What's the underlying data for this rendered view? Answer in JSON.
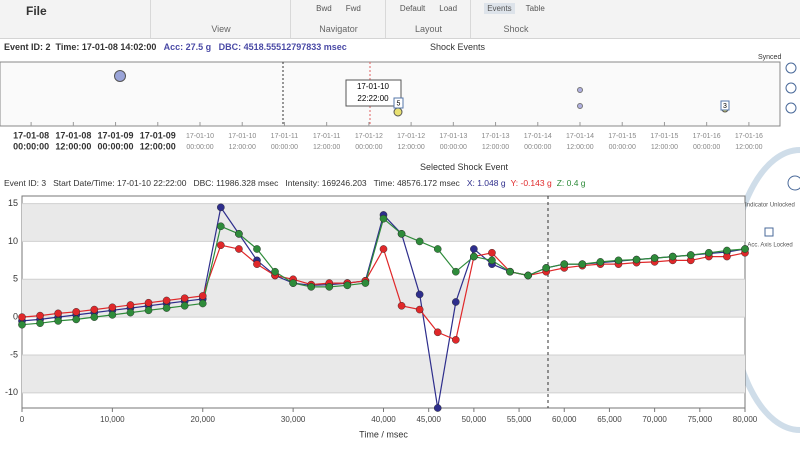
{
  "toolbar": {
    "file": "File",
    "groups": [
      {
        "name": "View",
        "buttons": []
      },
      {
        "name": "Navigator",
        "buttons": [
          "Bwd",
          "Fwd"
        ]
      },
      {
        "name": "Layout",
        "buttons": [
          "Default",
          "Load"
        ]
      },
      {
        "name": "Shock",
        "buttons": [
          "Events",
          "Table"
        ]
      }
    ]
  },
  "shock_events": {
    "title": "Shock Events",
    "synced": "Synced",
    "info": {
      "event_id": "Event ID: 2",
      "time": "Time: 17-01-08 14:02:00",
      "acc": "Acc: 27.5 g",
      "dbc": "DBC: 4518.55512797833 msec"
    },
    "tooltip": {
      "date": "17-01-10",
      "time": "22:22:00",
      "count": "5"
    },
    "marker_count": "3",
    "timeline_labels": [
      {
        "date": "17-01-08",
        "time": "00:00:00"
      },
      {
        "date": "17-01-08",
        "time": "12:00:00"
      },
      {
        "date": "17-01-09",
        "time": "00:00:00"
      },
      {
        "date": "17-01-09",
        "time": "12:00:00"
      },
      {
        "date": "17-01-10",
        "time": "00:00:00"
      },
      {
        "date": "17-01-10",
        "time": "12:00:00"
      },
      {
        "date": "17-01-11",
        "time": "00:00:00"
      },
      {
        "date": "17-01-11",
        "time": "12:00:00"
      },
      {
        "date": "17-01-12",
        "time": "00:00:00"
      },
      {
        "date": "17-01-12",
        "time": "12:00:00"
      },
      {
        "date": "17-01-13",
        "time": "00:00:00"
      },
      {
        "date": "17-01-13",
        "time": "12:00:00"
      },
      {
        "date": "17-01-14",
        "time": "00:00:00"
      },
      {
        "date": "17-01-14",
        "time": "12:00:00"
      },
      {
        "date": "17-01-15",
        "time": "00:00:00"
      },
      {
        "date": "17-01-15",
        "time": "12:00:00"
      },
      {
        "date": "17-01-16",
        "time": "00:00:00"
      },
      {
        "date": "17-01-16",
        "time": "12:00:00"
      }
    ]
  },
  "selected_event": {
    "title": "Selected Shock Event",
    "info": [
      "Event ID: 3",
      "Start Date/Time: 17-01-10 22:22:00",
      "DBC: 11986.328 msec",
      "Intensity: 169246.203",
      "Time: 48576.172 msec"
    ],
    "axes_info": [
      {
        "text": "X: 1.048 g",
        "color": "#2e2e8c"
      },
      {
        "text": "Y: -0.143 g",
        "color": "#e0282a"
      },
      {
        "text": "Z: 0.4 g",
        "color": "#2e8b3a"
      }
    ],
    "side_buttons": [
      "Indicator Unlocked",
      "Acc. Axis Locked"
    ]
  },
  "chart_data": {
    "type": "line",
    "x_label": "Time / msec",
    "x": [
      0,
      2000,
      4000,
      6000,
      8000,
      10000,
      12000,
      14000,
      16000,
      18000,
      20000,
      22000,
      24000,
      26000,
      28000,
      30000,
      32000,
      34000,
      36000,
      38000,
      40000,
      42000,
      44000,
      46000,
      48000,
      50000,
      52000,
      54000,
      56000,
      58000,
      60000,
      62000,
      64000,
      66000,
      68000,
      70000,
      72000,
      74000,
      76000,
      78000,
      80000
    ],
    "series": [
      {
        "color": "#2e2e8c",
        "values": [
          -0.5,
          -0.3,
          0,
          0.3,
          0.6,
          0.9,
          1.2,
          1.5,
          1.8,
          2.1,
          2.4,
          14.5,
          11,
          7.5,
          5.5,
          4.5,
          4.2,
          4.3,
          4.5,
          4.8,
          13.5,
          11,
          3,
          -12,
          2,
          9,
          7,
          6,
          5.5,
          6.5,
          7,
          7,
          7.2,
          7.4,
          7.6,
          7.8,
          8,
          8.2,
          8.4,
          8.6,
          9
        ]
      },
      {
        "color": "#e0282a",
        "values": [
          0,
          0.2,
          0.5,
          0.7,
          1,
          1.3,
          1.6,
          1.9,
          2.2,
          2.5,
          2.8,
          9.5,
          9,
          7,
          5.5,
          5,
          4.3,
          4.5,
          4.5,
          4.8,
          9,
          1.5,
          1,
          -2,
          -3,
          8,
          8.5,
          6,
          5.5,
          6,
          6.5,
          6.8,
          7,
          7,
          7.2,
          7.3,
          7.5,
          7.5,
          8,
          8,
          8.5
        ]
      },
      {
        "color": "#2e8b3a",
        "values": [
          -1,
          -0.8,
          -0.5,
          -0.3,
          0,
          0.3,
          0.6,
          0.9,
          1.2,
          1.5,
          1.8,
          12,
          11,
          9,
          6,
          4.5,
          4,
          4,
          4.2,
          4.5,
          13,
          11,
          10,
          9,
          6,
          8,
          7.5,
          6,
          5.5,
          6.5,
          7,
          7,
          7.3,
          7.5,
          7.6,
          7.8,
          8,
          8.2,
          8.5,
          8.8,
          9
        ]
      }
    ],
    "xlim": [
      0,
      80000
    ],
    "xticks": [
      0,
      {
        "value": 10000,
        "label": "10,000"
      },
      {
        "value": 20000,
        "label": "20,000"
      },
      {
        "value": 30000,
        "label": "30,000"
      },
      {
        "value": 40000,
        "label": "40,000"
      },
      {
        "value": 45000,
        "label": "45,000"
      },
      {
        "value": 50000,
        "label": "50,000"
      },
      {
        "value": 55000,
        "label": "55,000"
      },
      {
        "value": 60000,
        "label": "60,000"
      },
      {
        "value": 65000,
        "label": "65,000"
      },
      {
        "value": 70000,
        "label": "70,000"
      },
      {
        "value": 75000,
        "label": "75,000"
      },
      {
        "value": 80000,
        "label": "80,000"
      }
    ],
    "ylim": [
      -12,
      16
    ],
    "yticks": [
      -10,
      -5,
      0,
      5,
      10,
      15
    ],
    "grid": true
  }
}
